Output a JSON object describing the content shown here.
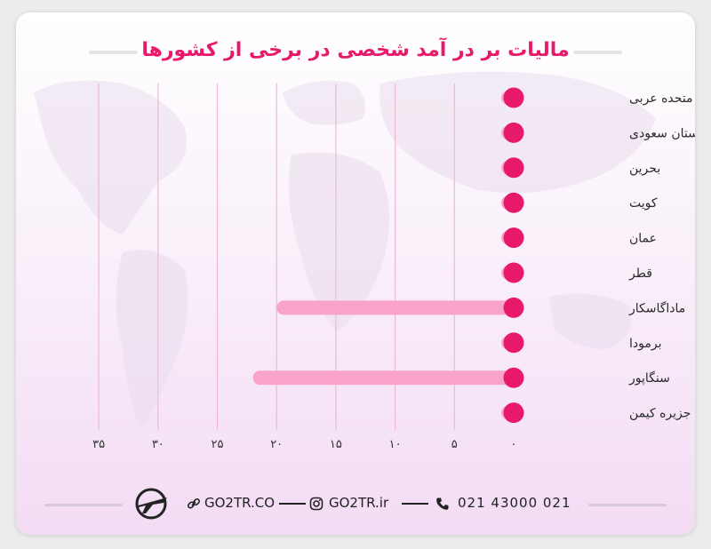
{
  "title": "مالیات بر در آمد شخصی در برخی از کشورها",
  "chart_data": {
    "type": "bar",
    "orientation": "horizontal",
    "categories": [
      "امارات متحده عربی",
      "عربستان سعودی",
      "بحرین",
      "کویت",
      "عمان",
      "قطر",
      "ماداگاسکار",
      "برمودا",
      "سنگاپور",
      "جزیره کیمن"
    ],
    "values": [
      0,
      0,
      0,
      0,
      0,
      0,
      20,
      0,
      22,
      0
    ],
    "x_ticks": [
      0,
      5,
      10,
      15,
      20,
      25,
      30,
      35
    ],
    "x_tick_labels": [
      "۰",
      "۵",
      "۱۰",
      "۱۵",
      "۲۰",
      "۲۵",
      "۳۰",
      "۳۵"
    ],
    "xlim": [
      0,
      35
    ],
    "grid": true,
    "bar_color": "#f9a3c8",
    "marker_color": "#e8196a",
    "grid_color": "#f0b8d4"
  },
  "footer": {
    "phone": "021 43000 021",
    "instagram": "GO2TR.ir",
    "website": "GO2TR.CO",
    "phone_icon": "phone-icon",
    "instagram_icon": "instagram-icon",
    "link_icon": "link-icon",
    "logo_icon": "go2tr-plane-logo"
  }
}
